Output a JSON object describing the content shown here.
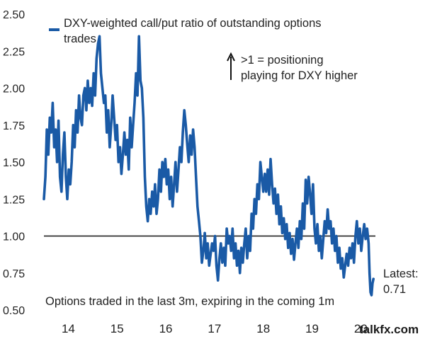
{
  "chart_data": {
    "type": "line",
    "legend": "DXY-weighted call/put ratio of outstanding options trades",
    "note": "Options traded in the last 3m, expiring in the coming 1m",
    "annotation_lines": [
      ">1 = positioning",
      "playing for DXY higher"
    ],
    "latest_label": "Latest:",
    "latest_value": "0.71",
    "watermark": "talkfx.com",
    "ylim": [
      0.5,
      2.5
    ],
    "yticks": [
      "2.50",
      "2.25",
      "2.00",
      "1.75",
      "1.50",
      "1.25",
      "1.00",
      "0.75",
      "0.50"
    ],
    "xlim": [
      2013.5,
      2020.3
    ],
    "xticks": [
      {
        "label": "14",
        "x": 2014.0
      },
      {
        "label": "15",
        "x": 2015.0
      },
      {
        "label": "16",
        "x": 2016.0
      },
      {
        "label": "17",
        "x": 2017.0
      },
      {
        "label": "18",
        "x": 2018.0
      },
      {
        "label": "19",
        "x": 2019.0
      },
      {
        "label": "20",
        "x": 2020.0
      }
    ],
    "reference_line": 1.0,
    "colors": {
      "series": "#1a5aa6",
      "reference": "#111111"
    },
    "series": [
      {
        "name": "DXY-weighted call/put ratio of outstanding options trades",
        "points": [
          [
            2013.5,
            1.25
          ],
          [
            2013.53,
            1.4
          ],
          [
            2013.56,
            1.72
          ],
          [
            2013.59,
            1.55
          ],
          [
            2013.62,
            1.8
          ],
          [
            2013.65,
            1.7
          ],
          [
            2013.68,
            1.9
          ],
          [
            2013.71,
            1.6
          ],
          [
            2013.74,
            1.72
          ],
          [
            2013.77,
            1.5
          ],
          [
            2013.8,
            1.78
          ],
          [
            2013.83,
            1.4
          ],
          [
            2013.86,
            1.3
          ],
          [
            2013.89,
            1.55
          ],
          [
            2013.92,
            1.7
          ],
          [
            2013.95,
            1.4
          ],
          [
            2013.98,
            1.25
          ],
          [
            2014.01,
            1.45
          ],
          [
            2014.04,
            1.35
          ],
          [
            2014.07,
            1.5
          ],
          [
            2014.1,
            1.75
          ],
          [
            2014.13,
            1.6
          ],
          [
            2014.16,
            1.85
          ],
          [
            2014.19,
            1.7
          ],
          [
            2014.22,
            1.95
          ],
          [
            2014.25,
            1.8
          ],
          [
            2014.28,
            1.75
          ],
          [
            2014.31,
            1.95
          ],
          [
            2014.34,
            2.0
          ],
          [
            2014.37,
            1.85
          ],
          [
            2014.4,
            2.05
          ],
          [
            2014.43,
            1.9
          ],
          [
            2014.46,
            2.0
          ],
          [
            2014.49,
            1.88
          ],
          [
            2014.52,
            2.1
          ],
          [
            2014.55,
            1.95
          ],
          [
            2014.58,
            2.2
          ],
          [
            2014.61,
            2.3
          ],
          [
            2014.64,
            2.35
          ],
          [
            2014.67,
            2.1
          ],
          [
            2014.7,
            2.0
          ],
          [
            2014.73,
            1.9
          ],
          [
            2014.76,
            1.95
          ],
          [
            2014.79,
            1.7
          ],
          [
            2014.82,
            1.85
          ],
          [
            2014.85,
            1.6
          ],
          [
            2014.88,
            1.75
          ],
          [
            2014.91,
            1.95
          ],
          [
            2014.94,
            1.8
          ],
          [
            2014.97,
            1.65
          ],
          [
            2015.0,
            1.75
          ],
          [
            2015.03,
            1.5
          ],
          [
            2015.06,
            1.6
          ],
          [
            2015.09,
            1.42
          ],
          [
            2015.12,
            1.55
          ],
          [
            2015.15,
            1.7
          ],
          [
            2015.18,
            1.55
          ],
          [
            2015.21,
            1.65
          ],
          [
            2015.24,
            1.45
          ],
          [
            2015.27,
            1.8
          ],
          [
            2015.3,
            1.6
          ],
          [
            2015.33,
            1.75
          ],
          [
            2015.36,
            1.9
          ],
          [
            2015.39,
            2.1
          ],
          [
            2015.42,
            1.95
          ],
          [
            2015.45,
            2.35
          ],
          [
            2015.48,
            2.05
          ],
          [
            2015.51,
            2.0
          ],
          [
            2015.54,
            1.8
          ],
          [
            2015.57,
            1.4
          ],
          [
            2015.6,
            1.2
          ],
          [
            2015.63,
            1.1
          ],
          [
            2015.66,
            1.25
          ],
          [
            2015.69,
            1.15
          ],
          [
            2015.72,
            1.3
          ],
          [
            2015.75,
            1.2
          ],
          [
            2015.78,
            1.35
          ],
          [
            2015.81,
            1.15
          ],
          [
            2015.84,
            1.25
          ],
          [
            2015.87,
            1.45
          ],
          [
            2015.9,
            1.3
          ],
          [
            2015.93,
            1.5
          ],
          [
            2015.96,
            1.4
          ],
          [
            2015.99,
            1.52
          ],
          [
            2016.02,
            1.35
          ],
          [
            2016.05,
            1.45
          ],
          [
            2016.08,
            1.25
          ],
          [
            2016.11,
            1.4
          ],
          [
            2016.14,
            1.2
          ],
          [
            2016.17,
            1.35
          ],
          [
            2016.2,
            1.5
          ],
          [
            2016.23,
            1.3
          ],
          [
            2016.26,
            1.45
          ],
          [
            2016.29,
            1.6
          ],
          [
            2016.32,
            1.5
          ],
          [
            2016.35,
            1.7
          ],
          [
            2016.38,
            1.85
          ],
          [
            2016.41,
            1.75
          ],
          [
            2016.44,
            1.62
          ],
          [
            2016.47,
            1.5
          ],
          [
            2016.5,
            1.68
          ],
          [
            2016.53,
            1.55
          ],
          [
            2016.56,
            1.72
          ],
          [
            2016.59,
            1.6
          ],
          [
            2016.62,
            1.4
          ],
          [
            2016.65,
            1.2
          ],
          [
            2016.68,
            1.1
          ],
          [
            2016.71,
            1.0
          ],
          [
            2016.74,
            0.82
          ],
          [
            2016.77,
            0.9
          ],
          [
            2016.8,
            1.02
          ],
          [
            2016.83,
            0.85
          ],
          [
            2016.86,
            0.95
          ],
          [
            2016.89,
            0.8
          ],
          [
            2016.92,
            0.88
          ],
          [
            2016.95,
            0.95
          ],
          [
            2016.98,
            0.9
          ],
          [
            2017.01,
            1.0
          ],
          [
            2017.04,
            0.8
          ],
          [
            2017.07,
            0.7
          ],
          [
            2017.1,
            0.85
          ],
          [
            2017.13,
            0.95
          ],
          [
            2017.16,
            0.82
          ],
          [
            2017.19,
            0.92
          ],
          [
            2017.22,
            0.8
          ],
          [
            2017.25,
            1.05
          ],
          [
            2017.28,
            0.95
          ],
          [
            2017.31,
            1.0
          ],
          [
            2017.34,
            0.9
          ],
          [
            2017.37,
            1.05
          ],
          [
            2017.4,
            0.85
          ],
          [
            2017.43,
            0.95
          ],
          [
            2017.46,
            0.8
          ],
          [
            2017.49,
            0.9
          ],
          [
            2017.52,
            0.75
          ],
          [
            2017.55,
            0.92
          ],
          [
            2017.58,
            0.82
          ],
          [
            2017.61,
            0.95
          ],
          [
            2017.64,
            1.05
          ],
          [
            2017.67,
            0.85
          ],
          [
            2017.7,
            1.0
          ],
          [
            2017.73,
            0.9
          ],
          [
            2017.76,
            1.15
          ],
          [
            2017.79,
            1.05
          ],
          [
            2017.82,
            1.25
          ],
          [
            2017.85,
            1.15
          ],
          [
            2017.88,
            1.35
          ],
          [
            2017.91,
            1.25
          ],
          [
            2017.94,
            1.5
          ],
          [
            2017.97,
            1.4
          ],
          [
            2018.0,
            1.3
          ],
          [
            2018.03,
            1.42
          ],
          [
            2018.06,
            1.3
          ],
          [
            2018.09,
            1.45
          ],
          [
            2018.12,
            1.28
          ],
          [
            2018.15,
            1.52
          ],
          [
            2018.18,
            1.35
          ],
          [
            2018.21,
            1.22
          ],
          [
            2018.24,
            1.32
          ],
          [
            2018.27,
            1.15
          ],
          [
            2018.3,
            1.28
          ],
          [
            2018.33,
            1.08
          ],
          [
            2018.36,
            1.2
          ],
          [
            2018.39,
            1.02
          ],
          [
            2018.42,
            1.12
          ],
          [
            2018.45,
            0.98
          ],
          [
            2018.48,
            1.08
          ],
          [
            2018.51,
            0.92
          ],
          [
            2018.54,
            1.02
          ],
          [
            2018.57,
            0.88
          ],
          [
            2018.6,
            0.98
          ],
          [
            2018.63,
            0.84
          ],
          [
            2018.66,
            0.95
          ],
          [
            2018.69,
            1.05
          ],
          [
            2018.72,
            0.92
          ],
          [
            2018.75,
            1.1
          ],
          [
            2018.78,
            0.98
          ],
          [
            2018.81,
            1.22
          ],
          [
            2018.84,
            1.05
          ],
          [
            2018.87,
            1.38
          ],
          [
            2018.9,
            1.22
          ],
          [
            2018.93,
            1.4
          ],
          [
            2018.96,
            1.28
          ],
          [
            2018.99,
            1.15
          ],
          [
            2019.02,
            1.35
          ],
          [
            2019.05,
            1.05
          ],
          [
            2019.08,
            0.95
          ],
          [
            2019.11,
            1.08
          ],
          [
            2019.14,
            0.9
          ],
          [
            2019.17,
            1.0
          ],
          [
            2019.2,
            0.85
          ],
          [
            2019.23,
            0.98
          ],
          [
            2019.26,
            1.1
          ],
          [
            2019.29,
            1.02
          ],
          [
            2019.32,
            1.18
          ],
          [
            2019.35,
            1.05
          ],
          [
            2019.38,
            1.1
          ],
          [
            2019.41,
            0.95
          ],
          [
            2019.44,
            1.05
          ],
          [
            2019.47,
            0.9
          ],
          [
            2019.5,
            1.0
          ],
          [
            2019.53,
            0.82
          ],
          [
            2019.56,
            0.92
          ],
          [
            2019.59,
            0.78
          ],
          [
            2019.62,
            0.85
          ],
          [
            2019.65,
            0.72
          ],
          [
            2019.68,
            0.8
          ],
          [
            2019.71,
            0.88
          ],
          [
            2019.74,
            0.8
          ],
          [
            2019.77,
            0.92
          ],
          [
            2019.8,
            0.85
          ],
          [
            2019.83,
            0.95
          ],
          [
            2019.86,
            0.82
          ],
          [
            2019.89,
            1.0
          ],
          [
            2019.92,
            1.1
          ],
          [
            2019.95,
            0.95
          ],
          [
            2019.98,
            1.05
          ],
          [
            2020.01,
            0.9
          ],
          [
            2020.04,
            1.0
          ],
          [
            2020.07,
            1.08
          ],
          [
            2020.1,
            0.98
          ],
          [
            2020.13,
            1.05
          ],
          [
            2020.16,
            0.95
          ],
          [
            2020.18,
            0.75
          ],
          [
            2020.2,
            0.62
          ],
          [
            2020.22,
            0.6
          ],
          [
            2020.24,
            0.68
          ],
          [
            2020.26,
            0.71
          ]
        ]
      }
    ]
  }
}
